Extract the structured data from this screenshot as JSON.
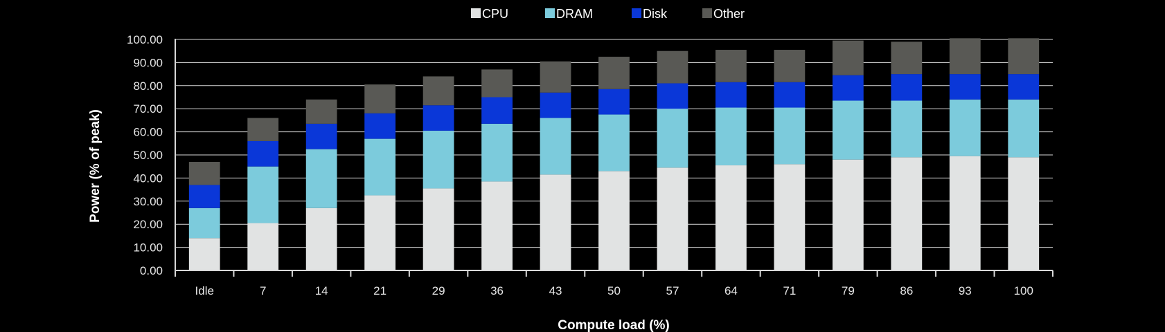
{
  "chart_data": {
    "type": "bar",
    "stacked": true,
    "xlabel": "Compute load (%)",
    "ylabel": "Power (% of peak)",
    "ylim": [
      0,
      100
    ],
    "ytick_step": 10,
    "ytick_format": "0.00",
    "grid": true,
    "legend_position": "top",
    "categories": [
      "Idle",
      "7",
      "14",
      "21",
      "29",
      "36",
      "43",
      "50",
      "57",
      "64",
      "71",
      "79",
      "86",
      "93",
      "100"
    ],
    "series": [
      {
        "name": "CPU",
        "color": "#e1e3e3",
        "values": [
          14,
          20.5,
          27,
          32.5,
          35.5,
          38.5,
          41.5,
          43,
          44.5,
          45.5,
          46,
          48,
          49,
          49.5,
          49
        ]
      },
      {
        "name": "DRAM",
        "color": "#7ccbdc",
        "values": [
          13,
          24.5,
          25.5,
          24.5,
          25,
          25,
          24.5,
          24.5,
          25.5,
          25,
          24.5,
          25.5,
          24.5,
          24.5,
          25
        ]
      },
      {
        "name": "Disk",
        "color": "#0a37d8",
        "values": [
          10,
          11,
          11,
          11,
          11,
          11.5,
          11,
          11,
          11,
          11,
          11,
          11,
          11.5,
          11,
          11
        ]
      },
      {
        "name": "Other",
        "color": "#595955",
        "values": [
          10,
          10,
          10.5,
          12.5,
          12.5,
          12,
          13.5,
          14,
          14,
          14,
          14,
          15,
          14,
          15.5,
          15.5
        ]
      }
    ]
  }
}
